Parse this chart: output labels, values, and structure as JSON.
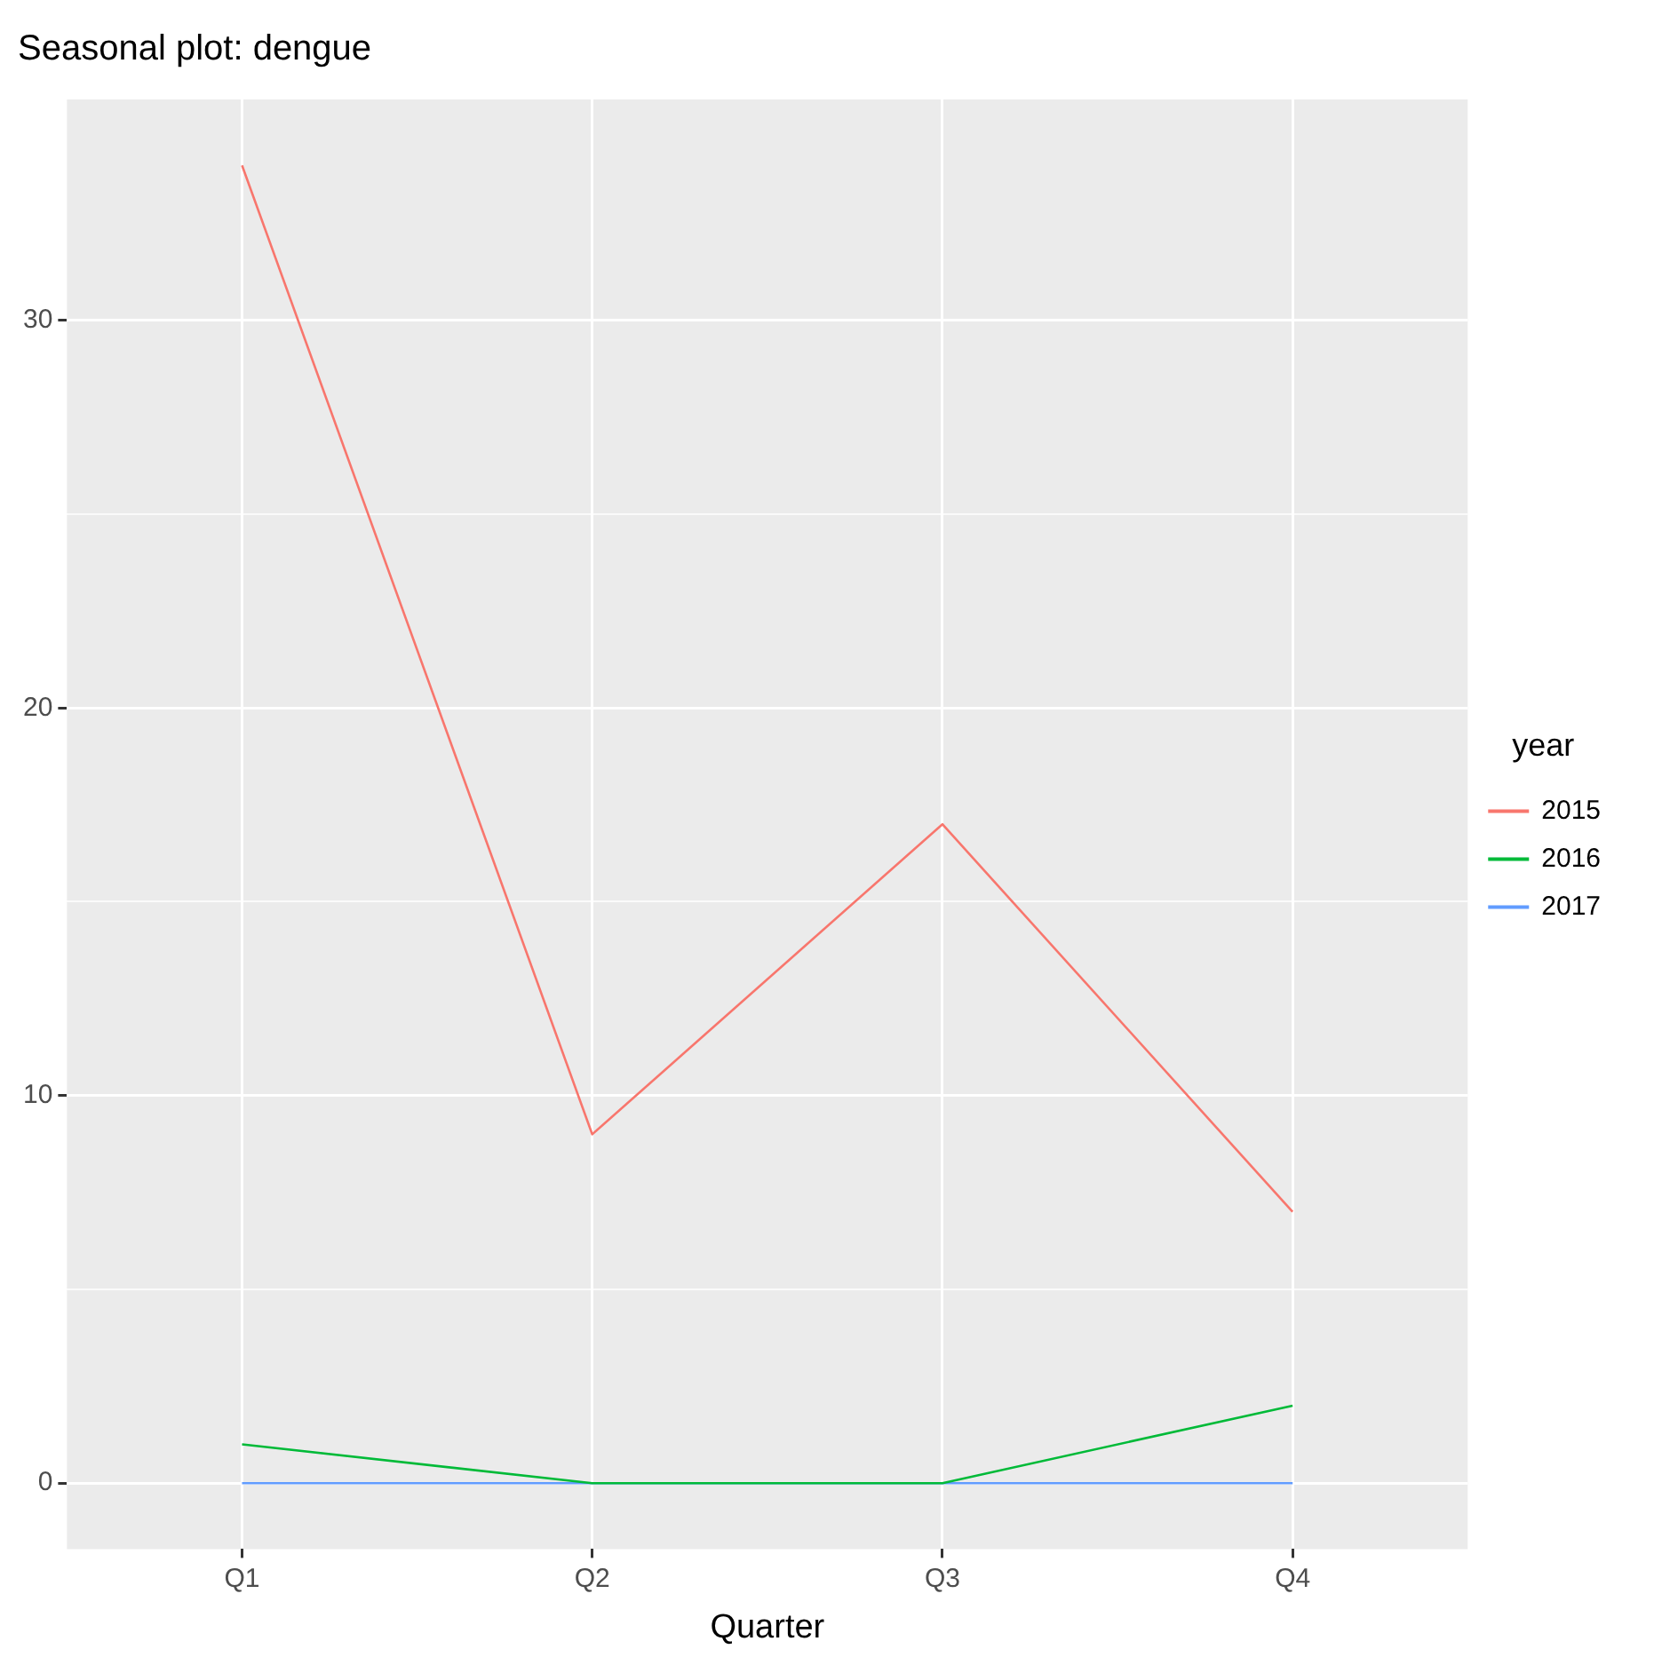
{
  "chart_data": {
    "type": "line",
    "title": "Seasonal plot: dengue",
    "xlabel": "Quarter",
    "legend_title": "year",
    "categories": [
      "Q1",
      "Q2",
      "Q3",
      "Q4"
    ],
    "series": [
      {
        "name": "2015",
        "color": "#f8766d",
        "values": [
          34,
          9,
          17,
          7
        ]
      },
      {
        "name": "2016",
        "color": "#00ba38",
        "values": [
          1,
          0,
          0,
          2
        ]
      },
      {
        "name": "2017",
        "color": "#619cff",
        "values": [
          0,
          0,
          0,
          0
        ]
      }
    ],
    "ylim": [
      -1.7,
      35.7
    ],
    "yticks": [
      0,
      {
        "value": 5,
        "label": null
      },
      10,
      {
        "value": 15,
        "label": null
      },
      20,
      {
        "value": 25,
        "label": null
      },
      30
    ],
    "grid": true,
    "legend": "right",
    "marker": "none",
    "line_style": "solid"
  }
}
